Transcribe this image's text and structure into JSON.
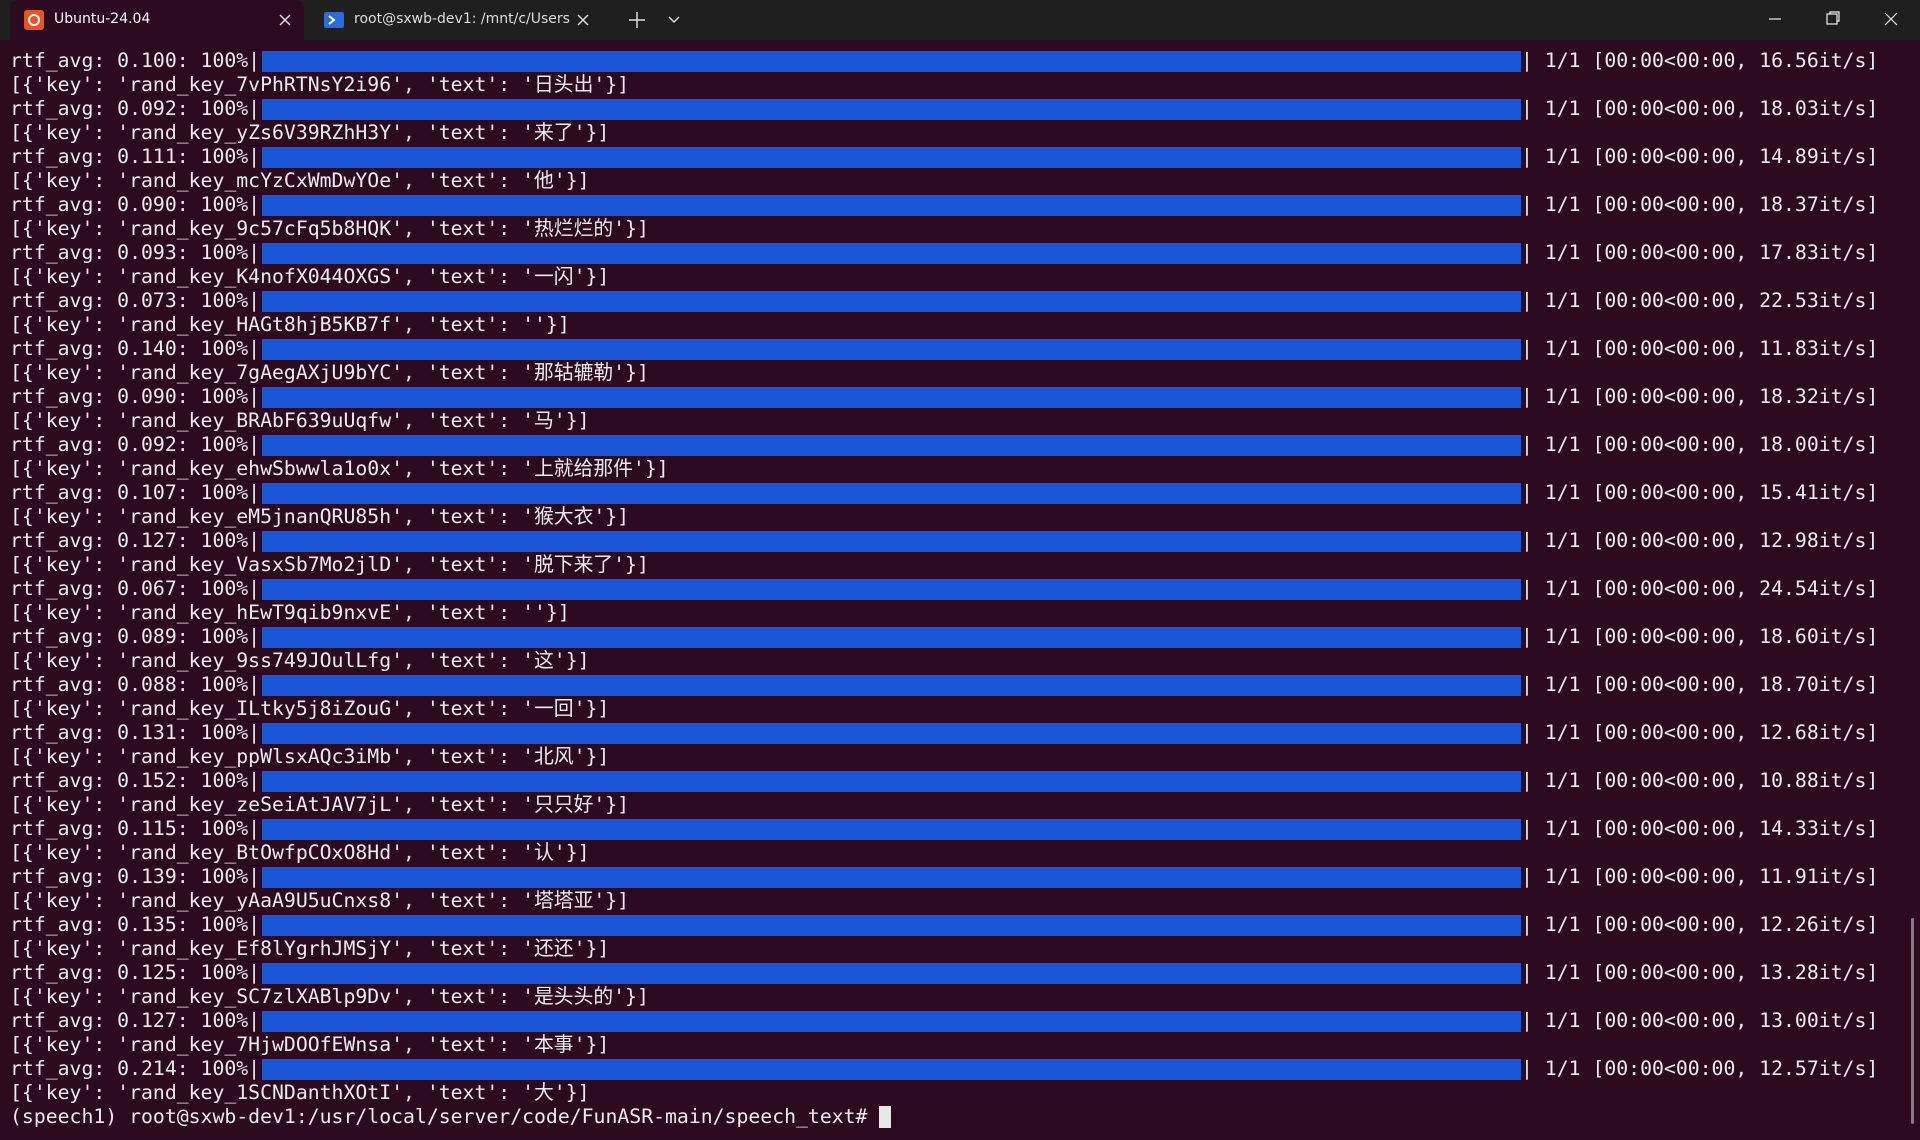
{
  "tabs": [
    {
      "title": "Ubuntu-24.04"
    },
    {
      "title": "root@sxwb-dev1: /mnt/c/Users"
    }
  ],
  "terminal": {
    "entries": [
      {
        "progress": "rtf_avg: 0.100: 100%|",
        "stats": "| 1/1 [00:00<00:00, 16.56it/s]",
        "result": "[{'key': 'rand_key_7vPhRTNsY2i96', 'text': '日头出'}]"
      },
      {
        "progress": "rtf_avg: 0.092: 100%|",
        "stats": "| 1/1 [00:00<00:00, 18.03it/s]",
        "result": "[{'key': 'rand_key_yZs6V39RZhH3Y', 'text': '来了'}]"
      },
      {
        "progress": "rtf_avg: 0.111: 100%|",
        "stats": "| 1/1 [00:00<00:00, 14.89it/s]",
        "result": "[{'key': 'rand_key_mcYzCxWmDwYOe', 'text': '他'}]"
      },
      {
        "progress": "rtf_avg: 0.090: 100%|",
        "stats": "| 1/1 [00:00<00:00, 18.37it/s]",
        "result": "[{'key': 'rand_key_9c57cFq5b8HQK', 'text': '热烂烂的'}]"
      },
      {
        "progress": "rtf_avg: 0.093: 100%|",
        "stats": "| 1/1 [00:00<00:00, 17.83it/s]",
        "result": "[{'key': 'rand_key_K4nofX044OXGS', 'text': '一闪'}]"
      },
      {
        "progress": "rtf_avg: 0.073: 100%|",
        "stats": "| 1/1 [00:00<00:00, 22.53it/s]",
        "result": "[{'key': 'rand_key_HAGt8hjB5KB7f', 'text': ''}]"
      },
      {
        "progress": "rtf_avg: 0.140: 100%|",
        "stats": "| 1/1 [00:00<00:00, 11.83it/s]",
        "result": "[{'key': 'rand_key_7gAegAXjU9bYC', 'text': '那轱辘勒'}]"
      },
      {
        "progress": "rtf_avg: 0.090: 100%|",
        "stats": "| 1/1 [00:00<00:00, 18.32it/s]",
        "result": "[{'key': 'rand_key_BRAbF639uUqfw', 'text': '马'}]"
      },
      {
        "progress": "rtf_avg: 0.092: 100%|",
        "stats": "| 1/1 [00:00<00:00, 18.00it/s]",
        "result": "[{'key': 'rand_key_ehwSbwwla1o0x', 'text': '上就给那件'}]"
      },
      {
        "progress": "rtf_avg: 0.107: 100%|",
        "stats": "| 1/1 [00:00<00:00, 15.41it/s]",
        "result": "[{'key': 'rand_key_eM5jnanQRU85h', 'text': '猴大衣'}]"
      },
      {
        "progress": "rtf_avg: 0.127: 100%|",
        "stats": "| 1/1 [00:00<00:00, 12.98it/s]",
        "result": "[{'key': 'rand_key_VasxSb7Mo2jlD', 'text': '脱下来了'}]"
      },
      {
        "progress": "rtf_avg: 0.067: 100%|",
        "stats": "| 1/1 [00:00<00:00, 24.54it/s]",
        "result": "[{'key': 'rand_key_hEwT9qib9nxvE', 'text': ''}]"
      },
      {
        "progress": "rtf_avg: 0.089: 100%|",
        "stats": "| 1/1 [00:00<00:00, 18.60it/s]",
        "result": "[{'key': 'rand_key_9ss749JOulLfg', 'text': '这'}]"
      },
      {
        "progress": "rtf_avg: 0.088: 100%|",
        "stats": "| 1/1 [00:00<00:00, 18.70it/s]",
        "result": "[{'key': 'rand_key_ILtky5j8iZouG', 'text': '一回'}]"
      },
      {
        "progress": "rtf_avg: 0.131: 100%|",
        "stats": "| 1/1 [00:00<00:00, 12.68it/s]",
        "result": "[{'key': 'rand_key_ppWlsxAQc3iMb', 'text': '北风'}]"
      },
      {
        "progress": "rtf_avg: 0.152: 100%|",
        "stats": "| 1/1 [00:00<00:00, 10.88it/s]",
        "result": "[{'key': 'rand_key_zeSeiAtJAV7jL', 'text': '只只好'}]"
      },
      {
        "progress": "rtf_avg: 0.115: 100%|",
        "stats": "| 1/1 [00:00<00:00, 14.33it/s]",
        "result": "[{'key': 'rand_key_BtOwfpCOxO8Hd', 'text': '认'}]"
      },
      {
        "progress": "rtf_avg: 0.139: 100%|",
        "stats": "| 1/1 [00:00<00:00, 11.91it/s]",
        "result": "[{'key': 'rand_key_yAaA9U5uCnxs8', 'text': '塔塔亚'}]"
      },
      {
        "progress": "rtf_avg: 0.135: 100%|",
        "stats": "| 1/1 [00:00<00:00, 12.26it/s]",
        "result": "[{'key': 'rand_key_Ef8lYgrhJMSjY', 'text': '还还'}]"
      },
      {
        "progress": "rtf_avg: 0.125: 100%|",
        "stats": "| 1/1 [00:00<00:00, 13.28it/s]",
        "result": "[{'key': 'rand_key_SC7zlXABlp9Dv', 'text': '是头头的'}]"
      },
      {
        "progress": "rtf_avg: 0.127: 100%|",
        "stats": "| 1/1 [00:00<00:00, 13.00it/s]",
        "result": "[{'key': 'rand_key_7HjwDOOfEWnsa', 'text': '本事'}]"
      },
      {
        "progress": "rtf_avg: 0.214: 100%|",
        "stats": "| 1/1 [00:00<00:00, 12.57it/s]",
        "result": "[{'key': 'rand_key_1SCNDanthXOtI', 'text': '大'}]"
      }
    ],
    "prompt": "(speech1) root@sxwb-dev1:/usr/local/server/code/FunASR-main/speech_text# "
  }
}
